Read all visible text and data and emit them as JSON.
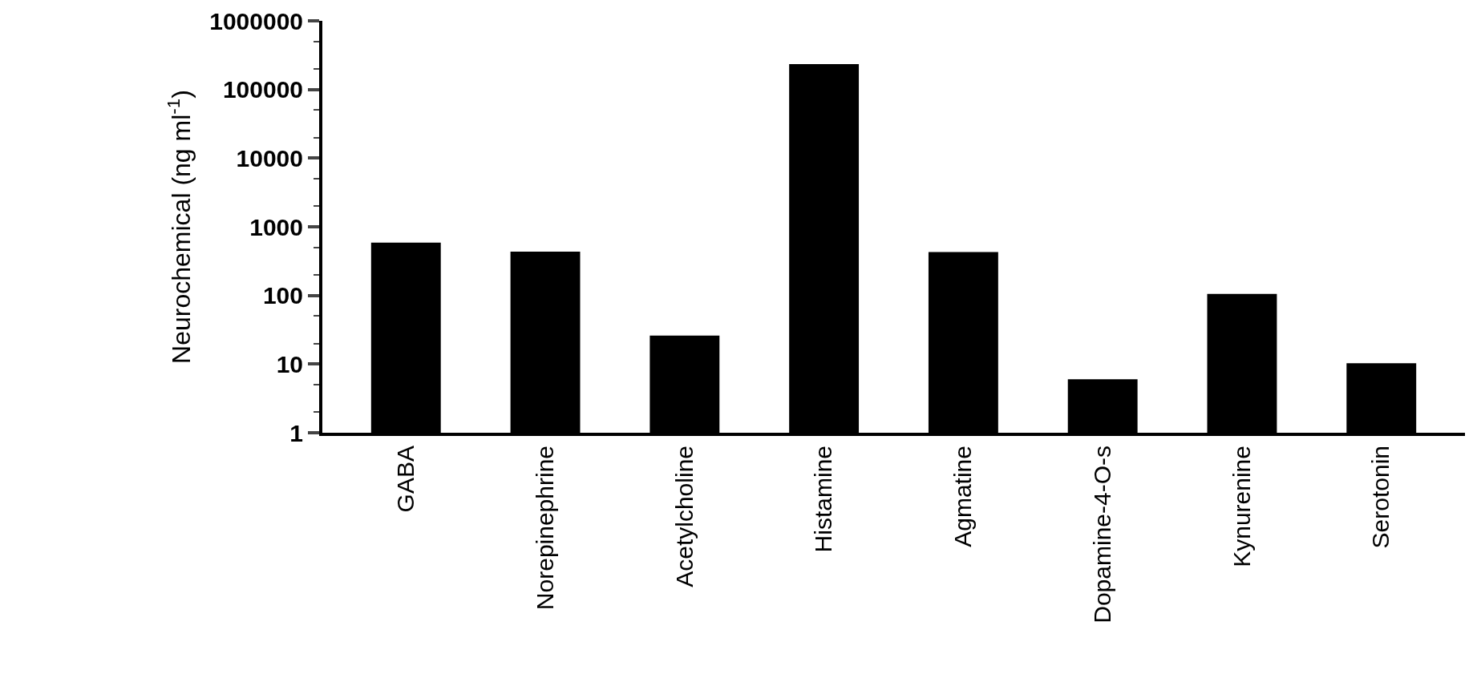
{
  "chart_data": {
    "type": "bar",
    "ylabel": "Neurochemical (ng ml$^{-1}$)",
    "categories": [
      "GABA",
      "Norepinephrine",
      "Acetylcholine",
      "Histamine",
      "Agmatine",
      "Dopamine-4-O-s",
      "Kynurenine",
      "Serotonin"
    ],
    "values": [
      590,
      435,
      26,
      234000,
      430,
      6,
      105,
      10.3
    ],
    "color": "#000000",
    "log": true,
    "ylim": [
      1,
      1000000
    ],
    "yticks": [
      1,
      10,
      100,
      1000,
      10000,
      100000,
      1000000
    ]
  }
}
